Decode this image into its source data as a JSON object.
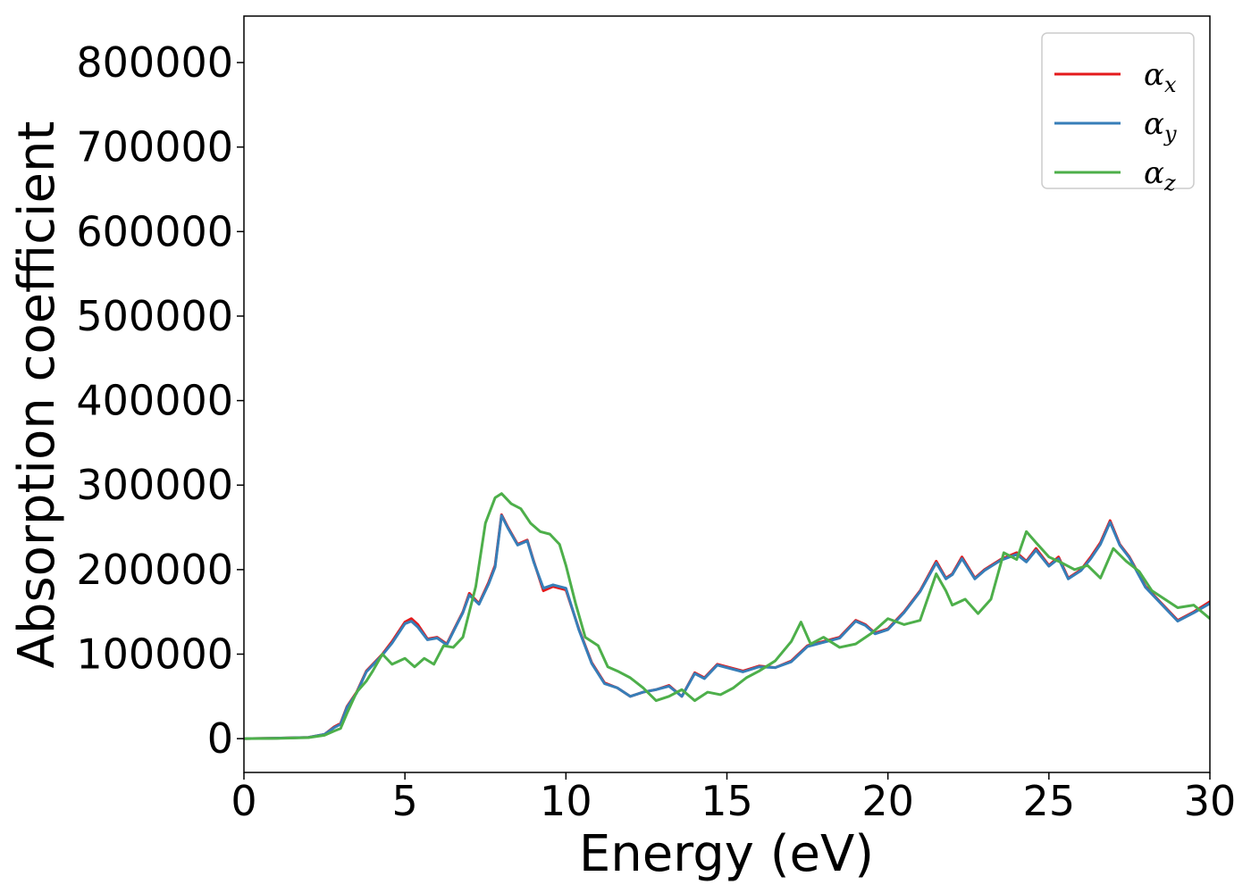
{
  "chart_data": {
    "type": "line",
    "title": "",
    "xlabel": "Energy (eV)",
    "ylabel": "Absorption coefficient",
    "xlim": [
      0,
      30
    ],
    "ylim": [
      -40000,
      855000
    ],
    "xticks": [
      0,
      5,
      10,
      15,
      20,
      25,
      30
    ],
    "yticks": [
      0,
      100000,
      200000,
      300000,
      400000,
      500000,
      600000,
      700000,
      800000
    ],
    "grid": false,
    "legend_position": "top-right",
    "series": [
      {
        "name": "αx",
        "legend_symbol": "α",
        "legend_subscript": "x",
        "color": "#e41a1c",
        "x": [
          0,
          1,
          2,
          2.5,
          2.8,
          3.0,
          3.2,
          3.5,
          3.8,
          4.0,
          4.3,
          4.6,
          5.0,
          5.2,
          5.4,
          5.7,
          6.0,
          6.3,
          6.6,
          6.8,
          7.0,
          7.3,
          7.6,
          7.8,
          8.0,
          8.2,
          8.5,
          8.8,
          9.0,
          9.3,
          9.6,
          10.0,
          10.4,
          10.8,
          11.2,
          11.6,
          12.0,
          12.4,
          12.8,
          13.2,
          13.6,
          14.0,
          14.3,
          14.7,
          15.0,
          15.5,
          16.0,
          16.5,
          17.0,
          17.5,
          18.0,
          18.5,
          19.0,
          19.3,
          19.6,
          20.0,
          20.5,
          21.0,
          21.5,
          21.8,
          22.0,
          22.3,
          22.7,
          23.0,
          23.5,
          24.0,
          24.3,
          24.6,
          25.0,
          25.3,
          25.6,
          26.0,
          26.3,
          26.6,
          26.9,
          27.2,
          27.5,
          28.0,
          28.5,
          29.0,
          29.5,
          30.0
        ],
        "y": [
          0,
          500,
          1500,
          5000,
          14000,
          18000,
          38000,
          55000,
          80000,
          88000,
          100000,
          115000,
          138000,
          142000,
          135000,
          118000,
          120000,
          112000,
          135000,
          150000,
          172000,
          160000,
          185000,
          205000,
          265000,
          250000,
          230000,
          235000,
          210000,
          175000,
          180000,
          176000,
          130000,
          90000,
          66000,
          60000,
          50000,
          55000,
          58000,
          63000,
          50000,
          78000,
          72000,
          88000,
          85000,
          80000,
          86000,
          84000,
          92000,
          110000,
          115000,
          120000,
          140000,
          135000,
          125000,
          130000,
          150000,
          175000,
          210000,
          190000,
          195000,
          215000,
          190000,
          200000,
          212000,
          220000,
          210000,
          225000,
          205000,
          215000,
          190000,
          200000,
          215000,
          232000,
          258000,
          230000,
          215000,
          180000,
          160000,
          140000,
          150000,
          162000
        ]
      },
      {
        "name": "αy",
        "legend_symbol": "α",
        "legend_subscript": "y",
        "color": "#377eb8",
        "x": [
          0,
          1,
          2,
          2.5,
          2.8,
          3.0,
          3.2,
          3.5,
          3.8,
          4.0,
          4.3,
          4.6,
          5.0,
          5.2,
          5.4,
          5.7,
          6.0,
          6.3,
          6.6,
          6.8,
          7.0,
          7.3,
          7.6,
          7.8,
          8.0,
          8.2,
          8.5,
          8.8,
          9.0,
          9.3,
          9.6,
          10.0,
          10.4,
          10.8,
          11.2,
          11.6,
          12.0,
          12.4,
          12.8,
          13.2,
          13.6,
          14.0,
          14.3,
          14.7,
          15.0,
          15.5,
          16.0,
          16.5,
          17.0,
          17.5,
          18.0,
          18.5,
          19.0,
          19.3,
          19.6,
          20.0,
          20.5,
          21.0,
          21.5,
          21.8,
          22.0,
          22.3,
          22.7,
          23.0,
          23.5,
          24.0,
          24.3,
          24.6,
          25.0,
          25.3,
          25.6,
          26.0,
          26.3,
          26.6,
          26.9,
          27.2,
          27.5,
          28.0,
          28.5,
          29.0,
          29.5,
          30.0
        ],
        "y": [
          0,
          500,
          1500,
          5000,
          13000,
          17000,
          37000,
          54000,
          79000,
          87000,
          99000,
          113000,
          136000,
          139000,
          132000,
          117000,
          119000,
          111000,
          134000,
          149000,
          170000,
          159000,
          183000,
          203000,
          264000,
          249000,
          229000,
          234000,
          209000,
          178000,
          182000,
          178000,
          129000,
          89000,
          65000,
          60000,
          50000,
          55000,
          58000,
          62000,
          50000,
          77000,
          71000,
          87000,
          84000,
          79000,
          85000,
          84000,
          91000,
          109000,
          114000,
          119000,
          139000,
          134000,
          124000,
          129000,
          149000,
          174000,
          208000,
          189000,
          194000,
          213000,
          189000,
          199000,
          211000,
          218000,
          209000,
          223000,
          204000,
          213000,
          189000,
          199000,
          213000,
          230000,
          256000,
          229000,
          214000,
          179000,
          159000,
          139000,
          149000,
          160000
        ]
      },
      {
        "name": "αz",
        "legend_symbol": "α",
        "legend_subscript": "z",
        "color": "#4daf4a",
        "x": [
          0,
          1,
          2,
          2.5,
          2.8,
          3.0,
          3.2,
          3.5,
          3.8,
          4.0,
          4.3,
          4.6,
          5.0,
          5.3,
          5.6,
          5.9,
          6.2,
          6.5,
          6.8,
          7.0,
          7.2,
          7.5,
          7.8,
          8.0,
          8.3,
          8.6,
          8.9,
          9.2,
          9.5,
          9.8,
          10.0,
          10.3,
          10.6,
          11.0,
          11.3,
          11.6,
          12.0,
          12.4,
          12.8,
          13.2,
          13.6,
          14.0,
          14.4,
          14.8,
          15.2,
          15.6,
          16.0,
          16.5,
          17.0,
          17.3,
          17.6,
          18.0,
          18.5,
          19.0,
          19.5,
          20.0,
          20.5,
          21.0,
          21.5,
          21.8,
          22.0,
          22.4,
          22.8,
          23.2,
          23.6,
          24.0,
          24.3,
          24.6,
          25.0,
          25.4,
          25.8,
          26.2,
          26.6,
          27.0,
          27.4,
          27.8,
          28.2,
          28.6,
          29.0,
          29.5,
          30.0
        ],
        "y": [
          0,
          300,
          1200,
          4000,
          9000,
          12000,
          30000,
          55000,
          68000,
          80000,
          100000,
          88000,
          95000,
          85000,
          95000,
          88000,
          110000,
          108000,
          120000,
          150000,
          180000,
          255000,
          285000,
          290000,
          278000,
          272000,
          255000,
          245000,
          242000,
          230000,
          205000,
          160000,
          120000,
          110000,
          85000,
          80000,
          72000,
          60000,
          45000,
          50000,
          58000,
          45000,
          55000,
          52000,
          60000,
          72000,
          80000,
          92000,
          115000,
          138000,
          112000,
          120000,
          108000,
          112000,
          125000,
          142000,
          135000,
          140000,
          195000,
          175000,
          158000,
          165000,
          148000,
          165000,
          220000,
          212000,
          245000,
          232000,
          215000,
          208000,
          200000,
          205000,
          190000,
          225000,
          210000,
          198000,
          175000,
          165000,
          155000,
          158000,
          142000
        ]
      }
    ]
  }
}
